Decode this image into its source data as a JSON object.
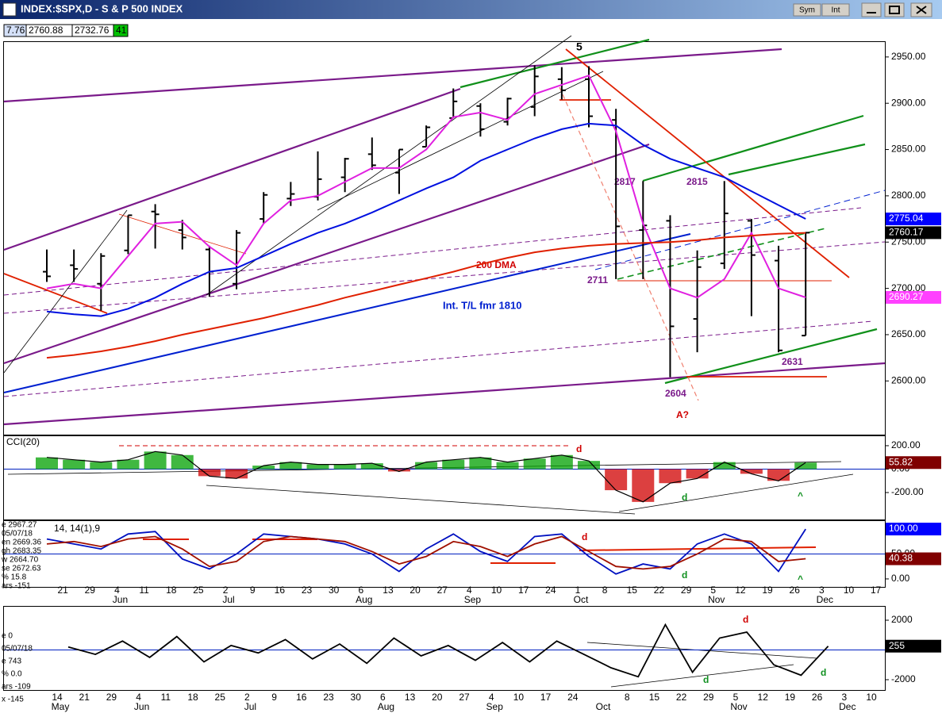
{
  "window": {
    "buttons": [
      "Sym",
      "Int"
    ]
  },
  "header_values": [
    "7.76",
    "2760.88",
    "2732.76",
    "41"
  ],
  "chart_data": [
    {
      "type": "ohlc",
      "title": "INDEX:$SPX,D - S & P 500 INDEX",
      "categories": [
        null,
        "21",
        "29",
        "4",
        "11",
        "18",
        "25",
        "2",
        "9",
        "16",
        "23",
        "30",
        "6",
        "13",
        "20",
        "27",
        "4",
        "10",
        "17",
        "24",
        "1",
        "8",
        "15",
        "22",
        "29",
        "5",
        "12",
        "19",
        "26",
        "3",
        "10",
        "17"
      ],
      "month_labels": [
        null,
        null,
        null,
        "Jun",
        null,
        null,
        null,
        "Jul",
        null,
        null,
        null,
        null,
        "Aug",
        null,
        null,
        null,
        "Sep",
        null,
        null,
        null,
        "Oct",
        null,
        null,
        null,
        null,
        "Nov",
        null,
        null,
        null,
        "Dec",
        null,
        null
      ],
      "open": [
        2718,
        2725,
        2705,
        2741,
        2783,
        2763,
        2742,
        2705,
        2775,
        2797,
        2799,
        2820,
        2845,
        2825,
        2853,
        2884,
        2897,
        2880,
        2896,
        2926,
        2926,
        2882,
        2763,
        2773,
        2667,
        2727,
        2773,
        2730,
        2649,
        null,
        null,
        null
      ],
      "high": [
        2742,
        2742,
        2738,
        2779,
        2791,
        2774,
        2746,
        2763,
        2804,
        2815,
        2848,
        2841,
        2863,
        2850,
        2876,
        2916,
        2900,
        2906,
        2941,
        2939,
        2940,
        2894,
        2816,
        2779,
        2741,
        2816,
        2775,
        2746,
        2760.88,
        null,
        null,
        null
      ],
      "low": [
        2707,
        2707,
        2676,
        2737,
        2743,
        2742,
        2691,
        2699,
        2770,
        2789,
        2795,
        2804,
        2828,
        2802,
        2853,
        2884,
        2864,
        2876,
        2886,
        2904,
        2874,
        2710,
        2710,
        2604,
        2631,
        2721,
        2670,
        2631,
        2649,
        null,
        null,
        null
      ],
      "close": [
        2713,
        2721,
        2735,
        2779,
        2780,
        2755,
        2718,
        2760,
        2801,
        2802,
        2818,
        2840,
        2833,
        2850,
        2874,
        2902,
        2872,
        2905,
        2929,
        2914,
        2886,
        2767,
        2768,
        2659,
        2723,
        2781,
        2736,
        2633,
        2760.17,
        null,
        null,
        null
      ],
      "bar_color": "#000000",
      "close_label_color": "#000000",
      "series": [
        {
          "color": "#e020e0",
          "label_color": "#ff40ff",
          "values": [
            2700,
            2705,
            2700,
            2735,
            2770,
            2772,
            2745,
            2725,
            2770,
            2795,
            2800,
            2815,
            2830,
            2830,
            2850,
            2885,
            2890,
            2882,
            2910,
            2920,
            2930,
            2870,
            2770,
            2700,
            2690,
            2710,
            2760,
            2700,
            2690.27,
            null,
            null,
            null
          ]
        },
        {
          "color": "#0010e0",
          "label_color": "#0000ff",
          "values": [
            2675,
            2672,
            2670,
            2678,
            2690,
            2705,
            2718,
            2722,
            2735,
            2748,
            2760,
            2770,
            2782,
            2795,
            2808,
            2820,
            2838,
            2850,
            2862,
            2872,
            2878,
            2876,
            2855,
            2840,
            2830,
            2820,
            2805,
            2790,
            2775.04,
            null,
            null,
            null
          ]
        },
        {
          "color": "#e02000",
          "values": [
            2625,
            2628,
            2632,
            2637,
            2643,
            2650,
            2656,
            2662,
            2668,
            2675,
            2682,
            2690,
            2697,
            2704,
            2711,
            2718,
            2726,
            2733,
            2739,
            2743,
            2746,
            2748,
            2749,
            2750,
            2752,
            2755,
            2757,
            2759,
            2760,
            null,
            null,
            null
          ]
        }
      ],
      "ylim": [
        2542,
        2967
      ],
      "yticks": [
        {
          "value": 2600,
          "label": "2600.00"
        },
        {
          "value": 2650,
          "label": "2650.00"
        },
        {
          "value": 2700,
          "label": "2700.00"
        },
        {
          "value": 2750,
          "label": "2750.00"
        },
        {
          "value": 2800,
          "label": "2800.00"
        },
        {
          "value": 2850,
          "label": "2850.00"
        },
        {
          "value": 2900,
          "label": "2900.00"
        },
        {
          "value": 2950,
          "label": "2950.00"
        }
      ],
      "annotations": [
        "5",
        "2817",
        "2815",
        "2711",
        "2604",
        "2631",
        "A?",
        "200 DMA",
        "Int. T/L fmr 1810"
      ]
    },
    {
      "type": "bar",
      "title": "CCI(20)",
      "values": [
        100,
        80,
        60,
        80,
        150,
        120,
        -60,
        -80,
        30,
        60,
        40,
        40,
        50,
        -20,
        60,
        80,
        100,
        60,
        90,
        120,
        70,
        -180,
        -280,
        -120,
        -80,
        60,
        -40,
        -100,
        55.82,
        null,
        null,
        null
      ],
      "pos_color": "#00a000",
      "neg_color": "#d00000",
      "line_color": "#000000",
      "label_color": "#800000",
      "ylim": [
        -430,
        281
      ],
      "yticks": [
        {
          "value": 200,
          "label": "200.00"
        },
        {
          "value": 0,
          "label": "0.00"
        },
        {
          "value": -200,
          "label": "-200.00"
        }
      ],
      "annotations": [
        "d",
        "d",
        "^"
      ]
    },
    {
      "type": "line",
      "title": "14, 14(1),9",
      "info": [
        "e 2967.27",
        "05/07/18",
        "en 2669.36",
        "gh 2683.35",
        "w 2664.70",
        "se 2672.63",
        "% 15.8",
        "ars -151"
      ],
      "series": [
        {
          "color": "#0010c0",
          "label_color": "#0000ff",
          "values": [
            80,
            70,
            60,
            90,
            95,
            40,
            20,
            50,
            90,
            85,
            80,
            70,
            50,
            15,
            60,
            90,
            55,
            35,
            85,
            90,
            45,
            10,
            30,
            20,
            70,
            90,
            70,
            15,
            100,
            null,
            null,
            null
          ],
          "value_labels": [
            null,
            null,
            null,
            null,
            null,
            null,
            null,
            null,
            null,
            null,
            null,
            null,
            null,
            null,
            null,
            null,
            null,
            null,
            null,
            null,
            null,
            null,
            null,
            null,
            null,
            null,
            null,
            null,
            "100.00",
            null,
            null,
            null
          ]
        },
        {
          "color": "#a01000",
          "label_color": "#800000",
          "values": [
            70,
            75,
            65,
            80,
            85,
            60,
            25,
            35,
            75,
            85,
            80,
            75,
            55,
            30,
            45,
            75,
            65,
            45,
            70,
            85,
            55,
            25,
            20,
            25,
            50,
            80,
            75,
            35,
            40.38,
            null,
            null,
            null
          ]
        }
      ],
      "ylim": [
        -16,
        116
      ],
      "yticks": [
        {
          "value": 100,
          "label": "100.00"
        },
        {
          "value": 50,
          "label": "50.00"
        },
        {
          "value": 0,
          "label": "0.00"
        }
      ],
      "annotations": [
        "d",
        "d",
        "^"
      ]
    },
    {
      "type": "line",
      "info": [
        "e 0",
        "05/07/18",
        "e 743",
        "% 0.0",
        "ars -109",
        "x -145"
      ],
      "categories": [
        "14",
        "21",
        "29",
        "4",
        "11",
        "18",
        "25",
        "2",
        "9",
        "16",
        "23",
        "30",
        "6",
        "13",
        "20",
        "27",
        "4",
        "10",
        "17",
        "24",
        null,
        "8",
        "15",
        "22",
        "29",
        "5",
        "12",
        "19",
        "26",
        "3",
        "10"
      ],
      "month_labels": [
        "May",
        null,
        null,
        "Jun",
        null,
        null,
        null,
        "Jul",
        null,
        null,
        null,
        null,
        "Aug",
        null,
        null,
        null,
        "Sep",
        null,
        null,
        null,
        "Oct",
        null,
        null,
        null,
        null,
        "Nov",
        null,
        null,
        null,
        "Dec",
        null
      ],
      "series": [
        {
          "color": "#000000",
          "label_color": "#000000",
          "values": [
            200,
            -300,
            600,
            -500,
            900,
            -800,
            300,
            -200,
            700,
            -600,
            400,
            -900,
            800,
            -400,
            300,
            -700,
            500,
            -800,
            600,
            -300,
            -1200,
            -1800,
            1700,
            -1500,
            800,
            1200,
            -1000,
            -1700,
            255,
            null,
            null
          ]
        }
      ],
      "ylim": [
        -2693,
        2907
      ],
      "yticks": [
        2000,
        -2000
      ],
      "annotations": [
        "d",
        "d",
        "d"
      ]
    }
  ]
}
